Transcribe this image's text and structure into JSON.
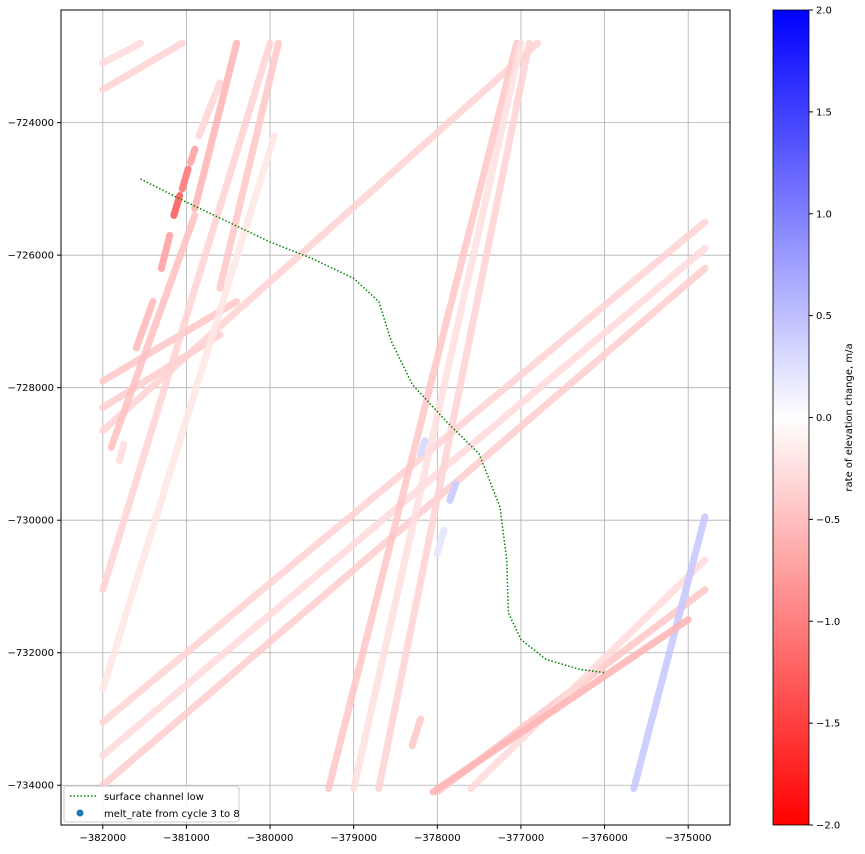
{
  "chart_data": {
    "type": "scatter",
    "xlabel": "",
    "ylabel": "",
    "xlim": [
      -382500,
      -374500
    ],
    "ylim": [
      -734600,
      -722300
    ],
    "grid": true,
    "x_ticks": [
      -382000,
      -381000,
      -380000,
      -379000,
      -378000,
      -377000,
      -376000,
      -375000
    ],
    "x_tick_labels": [
      "−382000",
      "−381000",
      "−380000",
      "−379000",
      "−378000",
      "−377000",
      "−376000",
      "−375000"
    ],
    "y_ticks": [
      -724000,
      -726000,
      -728000,
      -730000,
      -732000,
      -734000
    ],
    "y_tick_labels": [
      "−724000",
      "−726000",
      "−728000",
      "−730000",
      "−732000",
      "−734000"
    ],
    "legend": {
      "placement": "lower-left",
      "entries": [
        {
          "label": "surface channel low",
          "style": "dotted-line",
          "color": "#008000"
        },
        {
          "label": "melt_rate from cycle 3 to 8",
          "style": "marker",
          "color": "#1f77b4"
        }
      ]
    },
    "colorbar": {
      "label": "rate of elevation change, m/a",
      "range": [
        -2.0,
        2.0
      ],
      "colormap": "bwr_r",
      "ticks": [
        2.0,
        1.5,
        1.0,
        0.5,
        0.0,
        -0.5,
        -1.0,
        -1.5,
        -2.0
      ],
      "tick_labels": [
        "2.0",
        "1.5",
        "1.0",
        "0.5",
        "0.0",
        "−0.5",
        "−1.0",
        "−1.5",
        "−2.0"
      ]
    },
    "line_series": {
      "name": "surface channel low",
      "color": "#008000",
      "points": [
        [
          -381550,
          -724850
        ],
        [
          -381000,
          -725200
        ],
        [
          -380500,
          -725500
        ],
        [
          -380000,
          -725800
        ],
        [
          -379500,
          -726050
        ],
        [
          -379000,
          -726350
        ],
        [
          -378700,
          -726700
        ],
        [
          -378550,
          -727300
        ],
        [
          -378300,
          -727950
        ],
        [
          -377900,
          -728500
        ],
        [
          -377500,
          -729000
        ],
        [
          -377250,
          -729800
        ],
        [
          -377170,
          -730600
        ],
        [
          -377150,
          -731400
        ],
        [
          -377000,
          -731800
        ],
        [
          -376700,
          -732100
        ],
        [
          -376300,
          -732250
        ],
        [
          -376000,
          -732300
        ]
      ]
    },
    "tracks": [
      {
        "x1": -382000,
        "y1": -723100,
        "x2": -381550,
        "y2": -722800,
        "rate": -0.3
      },
      {
        "x1": -382000,
        "y1": -723500,
        "x2": -381050,
        "y2": -722800,
        "rate": -0.35
      },
      {
        "x1": -382000,
        "y1": -727900,
        "x2": -380400,
        "y2": -726700,
        "rate": -0.45
      },
      {
        "x1": -382000,
        "y1": -728300,
        "x2": -380600,
        "y2": -727200,
        "rate": -0.4
      },
      {
        "x1": -382000,
        "y1": -728650,
        "x2": -376800,
        "y2": -722800,
        "rate": -0.35
      },
      {
        "x1": -382000,
        "y1": -731050,
        "x2": -380000,
        "y2": -722800,
        "rate": -0.35
      },
      {
        "x1": -382000,
        "y1": -732550,
        "x2": -379950,
        "y2": -724200,
        "rate": -0.2
      },
      {
        "x1": -382000,
        "y1": -733050,
        "x2": -374800,
        "y2": -725500,
        "rate": -0.35
      },
      {
        "x1": -382000,
        "y1": -733550,
        "x2": -374800,
        "y2": -725900,
        "rate": -0.3
      },
      {
        "x1": -382000,
        "y1": -734000,
        "x2": -374800,
        "y2": -726200,
        "rate": -0.4
      },
      {
        "x1": -381900,
        "y1": -728900,
        "x2": -380900,
        "y2": -725400,
        "rate": -0.5
      },
      {
        "x1": -380600,
        "y1": -726500,
        "x2": -379900,
        "y2": -722800,
        "rate": -0.45
      },
      {
        "x1": -380900,
        "y1": -725300,
        "x2": -380400,
        "y2": -722800,
        "rate": -0.6
      },
      {
        "x1": -379300,
        "y1": -734050,
        "x2": -377050,
        "y2": -722800,
        "rate": -0.45
      },
      {
        "x1": -379000,
        "y1": -734050,
        "x2": -377000,
        "y2": -722800,
        "rate": -0.25
      },
      {
        "x1": -378700,
        "y1": -734050,
        "x2": -376900,
        "y2": -722800,
        "rate": -0.35
      },
      {
        "x1": -378000,
        "y1": -734100,
        "x2": -374800,
        "y2": -731050,
        "rate": -0.45
      },
      {
        "x1": -377600,
        "y1": -734050,
        "x2": -374800,
        "y2": -730600,
        "rate": -0.3
      },
      {
        "x1": -375650,
        "y1": -734050,
        "x2": -374800,
        "y2": -729950,
        "rate": 0.45
      },
      {
        "x1": -378050,
        "y1": -734100,
        "x2": -375000,
        "y2": -731500,
        "rate": -0.6
      }
    ],
    "dashes": [
      {
        "x1": -381600,
        "y1": -727400,
        "x2": -381400,
        "y2": -726700,
        "rate": -0.5
      },
      {
        "x1": -381300,
        "y1": -726200,
        "x2": -381200,
        "y2": -725700,
        "rate": -0.7
      },
      {
        "x1": -381150,
        "y1": -725400,
        "x2": -381080,
        "y2": -725100,
        "rate": -1.2
      },
      {
        "x1": -381050,
        "y1": -725000,
        "x2": -380980,
        "y2": -724700,
        "rate": -1.0
      },
      {
        "x1": -380950,
        "y1": -724600,
        "x2": -380900,
        "y2": -724400,
        "rate": -0.7
      },
      {
        "x1": -380850,
        "y1": -724200,
        "x2": -380600,
        "y2": -723400,
        "rate": -0.3
      },
      {
        "x1": -381800,
        "y1": -729100,
        "x2": -381750,
        "y2": -728850,
        "rate": -0.25
      },
      {
        "x1": -378300,
        "y1": -733400,
        "x2": -378200,
        "y2": -733000,
        "rate": -0.4
      },
      {
        "x1": -377850,
        "y1": -729700,
        "x2": -377780,
        "y2": -729450,
        "rate": 0.4
      },
      {
        "x1": -378000,
        "y1": -730500,
        "x2": -377920,
        "y2": -730150,
        "rate": 0.2
      },
      {
        "x1": -378200,
        "y1": -729000,
        "x2": -378150,
        "y2": -728800,
        "rate": 0.3
      }
    ]
  }
}
